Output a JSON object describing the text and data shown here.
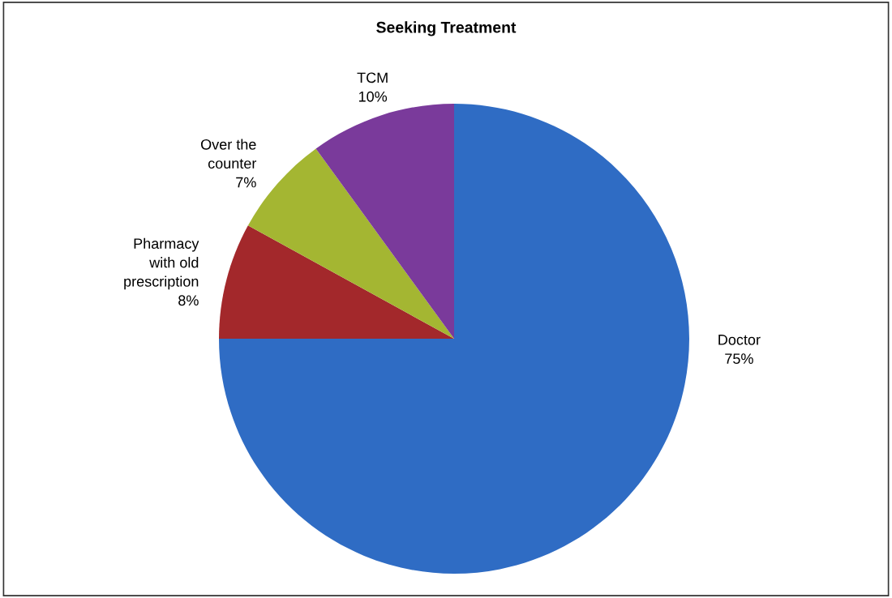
{
  "chart_data": {
    "type": "pie",
    "title": "Seeking Treatment",
    "categories": [
      "Doctor",
      "Pharmacy\nwith old\nprescription",
      "Over the\ncounter",
      "TCM"
    ],
    "values": [
      75,
      8,
      7,
      10
    ],
    "value_labels": [
      "75%",
      "8%",
      "7%",
      "10%"
    ],
    "colors": [
      "#2f6cc4",
      "#a3282b",
      "#a4b632",
      "#7a3a9b"
    ],
    "legend": false
  }
}
